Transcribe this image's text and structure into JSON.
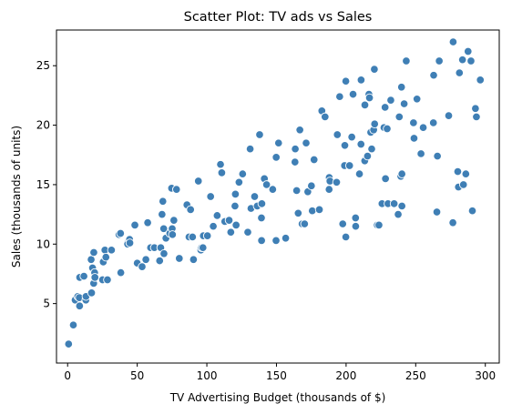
{
  "chart_data": {
    "type": "scatter",
    "title": "Scatter Plot: TV ads vs Sales",
    "xlabel": "TV Advertising Budget (thousands of $)",
    "ylabel": "Sales (thousands of units)",
    "xlim": [
      -8,
      310
    ],
    "ylim": [
      0,
      28
    ],
    "xticks": [
      0,
      50,
      100,
      150,
      200,
      250,
      300
    ],
    "yticks": [
      5,
      10,
      15,
      20,
      25
    ],
    "grid": false,
    "colors": {
      "point": "#3f7fb5",
      "point_edge": "#ffffff"
    },
    "points": [
      [
        0.7,
        1.6
      ],
      [
        4.1,
        3.2
      ],
      [
        5.4,
        5.3
      ],
      [
        7.3,
        5.6
      ],
      [
        8.4,
        5.5
      ],
      [
        8.6,
        4.8
      ],
      [
        8.7,
        7.2
      ],
      [
        11.7,
        7.3
      ],
      [
        13.1,
        5.3
      ],
      [
        13.2,
        5.6
      ],
      [
        16.9,
        8.7
      ],
      [
        17.2,
        5.9
      ],
      [
        17.9,
        8.0
      ],
      [
        18.7,
        6.7
      ],
      [
        18.8,
        9.3
      ],
      [
        19.4,
        7.6
      ],
      [
        19.6,
        7.2
      ],
      [
        25.1,
        7.0
      ],
      [
        25.6,
        8.5
      ],
      [
        26.8,
        9.5
      ],
      [
        27.5,
        8.9
      ],
      [
        28.6,
        7.0
      ],
      [
        31.5,
        9.5
      ],
      [
        36.9,
        10.8
      ],
      [
        38.0,
        10.9
      ],
      [
        38.2,
        7.6
      ],
      [
        43.0,
        10.1
      ],
      [
        43.1,
        10.0
      ],
      [
        44.5,
        10.4
      ],
      [
        44.7,
        10.1
      ],
      [
        48.3,
        11.6
      ],
      [
        50.0,
        8.4
      ],
      [
        53.5,
        8.1
      ],
      [
        56.2,
        8.7
      ],
      [
        57.5,
        11.8
      ],
      [
        59.6,
        9.7
      ],
      [
        62.3,
        9.7
      ],
      [
        66.1,
        8.6
      ],
      [
        66.9,
        9.7
      ],
      [
        67.8,
        12.5
      ],
      [
        68.4,
        13.6
      ],
      [
        69.0,
        11.3
      ],
      [
        69.2,
        9.2
      ],
      [
        70.6,
        10.5
      ],
      [
        73.4,
        10.9
      ],
      [
        74.7,
        14.7
      ],
      [
        75.1,
        11.3
      ],
      [
        75.3,
        10.8
      ],
      [
        76.3,
        12.0
      ],
      [
        78.2,
        14.6
      ],
      [
        80.2,
        8.8
      ],
      [
        85.7,
        13.3
      ],
      [
        87.2,
        10.6
      ],
      [
        88.3,
        12.9
      ],
      [
        89.7,
        10.6
      ],
      [
        90.4,
        8.7
      ],
      [
        93.9,
        15.3
      ],
      [
        95.7,
        9.5
      ],
      [
        96.2,
        9.7
      ],
      [
        97.2,
        9.7
      ],
      [
        97.5,
        10.7
      ],
      [
        100.4,
        10.7
      ],
      [
        102.7,
        14.0
      ],
      [
        104.6,
        11.5
      ],
      [
        107.4,
        12.4
      ],
      [
        109.8,
        16.7
      ],
      [
        110.7,
        16.0
      ],
      [
        112.9,
        11.9
      ],
      [
        116.0,
        12.0
      ],
      [
        117.2,
        11.0
      ],
      [
        120.2,
        13.2
      ],
      [
        120.5,
        14.2
      ],
      [
        121.0,
        11.6
      ],
      [
        123.1,
        15.2
      ],
      [
        125.7,
        15.9
      ],
      [
        129.4,
        11.0
      ],
      [
        131.1,
        18.0
      ],
      [
        131.7,
        13.0
      ],
      [
        134.3,
        14.0
      ],
      [
        136.2,
        13.2
      ],
      [
        137.9,
        19.2
      ],
      [
        139.2,
        12.2
      ],
      [
        139.3,
        10.3
      ],
      [
        139.5,
        13.4
      ],
      [
        141.3,
        15.5
      ],
      [
        142.9,
        15.0
      ],
      [
        147.3,
        14.6
      ],
      [
        149.7,
        10.3
      ],
      [
        149.8,
        17.3
      ],
      [
        151.5,
        18.5
      ],
      [
        156.6,
        10.5
      ],
      [
        163.3,
        16.9
      ],
      [
        163.5,
        18.0
      ],
      [
        164.5,
        14.5
      ],
      [
        165.6,
        12.6
      ],
      [
        166.8,
        19.6
      ],
      [
        168.4,
        11.7
      ],
      [
        170.2,
        11.7
      ],
      [
        171.3,
        18.5
      ],
      [
        172.5,
        14.4
      ],
      [
        175.1,
        14.9
      ],
      [
        175.7,
        12.8
      ],
      [
        177.0,
        17.1
      ],
      [
        180.8,
        12.9
      ],
      [
        182.6,
        21.2
      ],
      [
        184.9,
        20.7
      ],
      [
        187.8,
        14.6
      ],
      [
        187.9,
        15.6
      ],
      [
        188.4,
        15.3
      ],
      [
        193.2,
        15.2
      ],
      [
        193.7,
        19.2
      ],
      [
        195.4,
        22.4
      ],
      [
        197.6,
        11.7
      ],
      [
        198.9,
        16.6
      ],
      [
        199.1,
        18.3
      ],
      [
        199.8,
        10.6
      ],
      [
        199.8,
        23.7
      ],
      [
        202.5,
        16.6
      ],
      [
        204.1,
        19.0
      ],
      [
        205.0,
        22.6
      ],
      [
        206.8,
        12.2
      ],
      [
        206.9,
        11.5
      ],
      [
        209.6,
        15.9
      ],
      [
        210.7,
        18.4
      ],
      [
        210.8,
        23.8
      ],
      [
        213.4,
        17.0
      ],
      [
        213.5,
        21.7
      ],
      [
        215.4,
        17.4
      ],
      [
        216.4,
        22.6
      ],
      [
        216.8,
        22.3
      ],
      [
        217.7,
        19.4
      ],
      [
        218.4,
        18.0
      ],
      [
        219.8,
        19.6
      ],
      [
        220.3,
        24.7
      ],
      [
        220.5,
        20.1
      ],
      [
        222.4,
        11.6
      ],
      [
        223.6,
        11.6
      ],
      [
        225.8,
        13.4
      ],
      [
        227.2,
        19.8
      ],
      [
        228.0,
        21.5
      ],
      [
        228.3,
        15.5
      ],
      [
        229.5,
        19.7
      ],
      [
        230.1,
        13.4
      ],
      [
        232.1,
        22.1
      ],
      [
        234.5,
        13.4
      ],
      [
        237.4,
        12.5
      ],
      [
        238.2,
        20.7
      ],
      [
        239.3,
        15.7
      ],
      [
        239.8,
        23.2
      ],
      [
        240.1,
        15.9
      ],
      [
        240.1,
        13.2
      ],
      [
        241.7,
        21.8
      ],
      [
        243.2,
        25.4
      ],
      [
        248.4,
        20.2
      ],
      [
        248.8,
        18.9
      ],
      [
        250.9,
        22.2
      ],
      [
        253.8,
        17.6
      ],
      [
        255.4,
        19.8
      ],
      [
        262.7,
        20.2
      ],
      [
        262.9,
        24.2
      ],
      [
        265.2,
        12.7
      ],
      [
        265.6,
        17.4
      ],
      [
        266.9,
        25.4
      ],
      [
        273.7,
        20.8
      ],
      [
        276.7,
        11.8
      ],
      [
        276.9,
        27.0
      ],
      [
        280.2,
        16.1
      ],
      [
        280.7,
        14.8
      ],
      [
        281.4,
        24.4
      ],
      [
        283.6,
        25.5
      ],
      [
        284.3,
        15.0
      ],
      [
        286.0,
        15.9
      ],
      [
        287.6,
        26.2
      ],
      [
        289.7,
        25.4
      ],
      [
        290.7,
        12.8
      ],
      [
        292.9,
        21.4
      ],
      [
        293.6,
        20.7
      ],
      [
        296.4,
        23.8
      ]
    ]
  }
}
